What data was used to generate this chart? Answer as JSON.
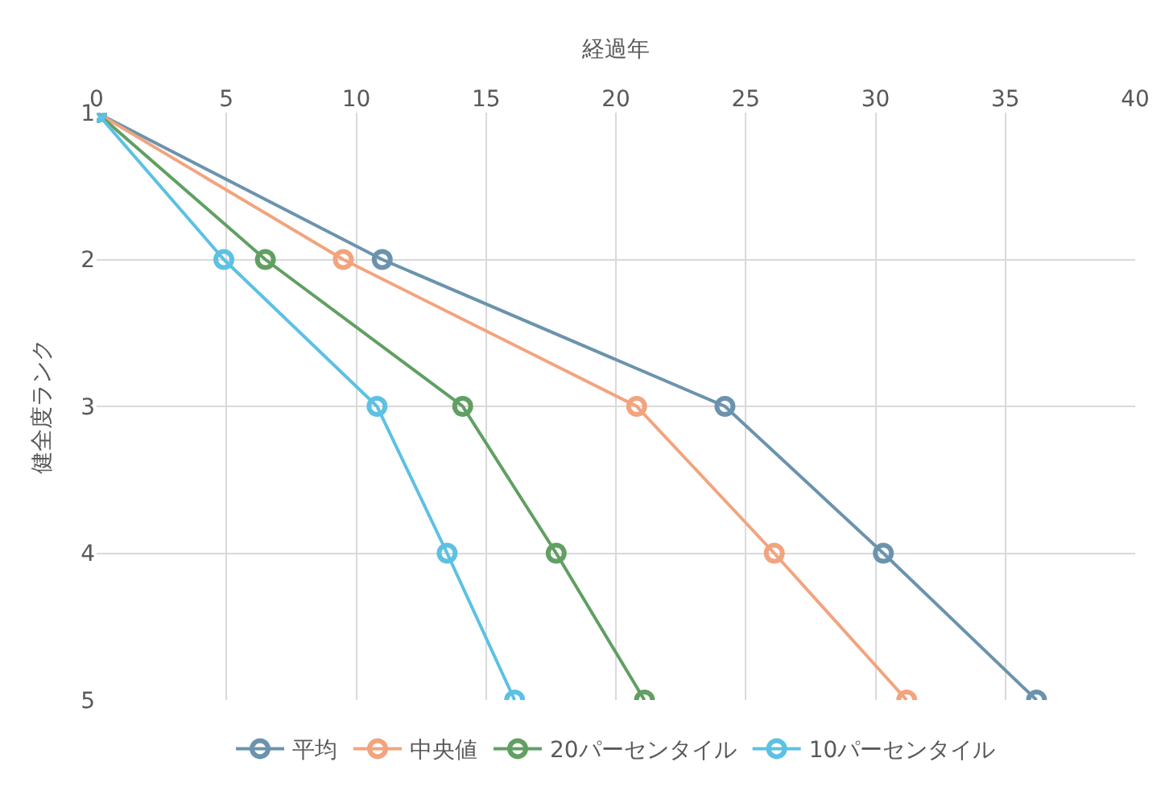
{
  "chart_data": {
    "type": "line",
    "xlabel": "経過年",
    "ylabel": "健全度ランク",
    "xlim": [
      0,
      40
    ],
    "xticks": [
      0,
      5,
      10,
      15,
      20,
      25,
      30,
      35,
      40
    ],
    "ylim": [
      5,
      1
    ],
    "yticks": [
      1,
      2,
      3,
      4,
      5
    ],
    "grid": true,
    "legend": "bottom",
    "marker": "circle",
    "line_style": "solid",
    "series": [
      {
        "name": "平均",
        "color": "#6b93ad",
        "x": [
          0,
          11,
          24.2,
          30.3,
          36.2
        ],
        "values": [
          1,
          2,
          3,
          4,
          5
        ]
      },
      {
        "name": "中央値",
        "color": "#f2a47e",
        "x": [
          0,
          9.5,
          20.8,
          26.1,
          31.2
        ],
        "values": [
          1,
          2,
          3,
          4,
          5
        ]
      },
      {
        "name": "20パーセンタイル",
        "color": "#619f63",
        "x": [
          0,
          6.5,
          14.1,
          17.7,
          21.1
        ],
        "values": [
          1,
          2,
          3,
          4,
          5
        ]
      },
      {
        "name": "10パーセンタイル",
        "color": "#5cc1e3",
        "x": [
          0,
          4.9,
          10.8,
          13.5,
          16.1
        ],
        "values": [
          1,
          2,
          3,
          4,
          5
        ]
      }
    ]
  }
}
